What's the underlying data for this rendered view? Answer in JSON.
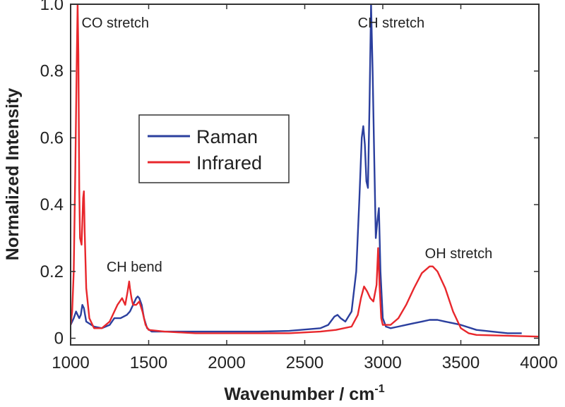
{
  "chart_data": {
    "type": "line",
    "xlabel": "Wavenumber / cm",
    "xlabel_sup": "-1",
    "ylabel": "Normalized Intensity",
    "xlim": [
      1000,
      4000
    ],
    "ylim": [
      -0.02,
      1.0
    ],
    "x_ticks": [
      1000,
      1500,
      2000,
      2500,
      3000,
      3500,
      4000
    ],
    "x_tick_labels": [
      "1000",
      "1500",
      "2000",
      "2500",
      "3000",
      "3500",
      "4000"
    ],
    "y_ticks": [
      0,
      0.2,
      0.4,
      0.6,
      0.8,
      1.0
    ],
    "y_tick_labels": [
      "0",
      "0.2",
      "0.4",
      "0.6",
      "0.8",
      "1.0"
    ],
    "grid": false,
    "legend_position": "center-left",
    "series": [
      {
        "name": "Raman",
        "color": "#2b3f9e",
        "x": [
          1000,
          1020,
          1035,
          1045,
          1055,
          1065,
          1075,
          1085,
          1100,
          1150,
          1200,
          1250,
          1280,
          1320,
          1360,
          1380,
          1400,
          1420,
          1430,
          1440,
          1455,
          1470,
          1490,
          1520,
          1600,
          1800,
          2000,
          2200,
          2400,
          2600,
          2650,
          2690,
          2710,
          2730,
          2760,
          2800,
          2830,
          2850,
          2865,
          2875,
          2885,
          2895,
          2905,
          2915,
          2925,
          2935,
          2945,
          2955,
          2965,
          2975,
          2985,
          3000,
          3020,
          3050,
          3100,
          3150,
          3200,
          3250,
          3300,
          3350,
          3400,
          3450,
          3500,
          3600,
          3700,
          3800,
          3890
        ],
        "values": [
          0.04,
          0.06,
          0.08,
          0.07,
          0.06,
          0.07,
          0.1,
          0.09,
          0.05,
          0.035,
          0.03,
          0.04,
          0.06,
          0.06,
          0.07,
          0.08,
          0.1,
          0.12,
          0.125,
          0.12,
          0.1,
          0.06,
          0.03,
          0.02,
          0.02,
          0.02,
          0.02,
          0.02,
          0.022,
          0.03,
          0.04,
          0.065,
          0.07,
          0.06,
          0.05,
          0.08,
          0.2,
          0.42,
          0.6,
          0.635,
          0.58,
          0.47,
          0.45,
          0.7,
          1.0,
          0.8,
          0.55,
          0.3,
          0.35,
          0.39,
          0.2,
          0.06,
          0.035,
          0.03,
          0.035,
          0.04,
          0.045,
          0.05,
          0.055,
          0.055,
          0.05,
          0.045,
          0.04,
          0.025,
          0.02,
          0.015,
          0.015
        ]
      },
      {
        "name": "Infrared",
        "color": "#e8272c",
        "x": [
          1000,
          1010,
          1020,
          1030,
          1040,
          1045,
          1050,
          1055,
          1060,
          1070,
          1080,
          1085,
          1090,
          1100,
          1120,
          1150,
          1200,
          1250,
          1280,
          1300,
          1330,
          1350,
          1365,
          1375,
          1380,
          1390,
          1400,
          1420,
          1440,
          1460,
          1480,
          1500,
          1600,
          1800,
          2000,
          2200,
          2400,
          2600,
          2700,
          2800,
          2840,
          2860,
          2880,
          2900,
          2920,
          2940,
          2960,
          2970,
          2980,
          2990,
          3000,
          3050,
          3100,
          3150,
          3200,
          3250,
          3300,
          3320,
          3350,
          3400,
          3450,
          3500,
          3550,
          3600,
          4000
        ],
        "values": [
          0.04,
          0.08,
          0.2,
          0.5,
          0.85,
          1.0,
          0.85,
          0.45,
          0.3,
          0.28,
          0.42,
          0.44,
          0.32,
          0.15,
          0.06,
          0.03,
          0.03,
          0.05,
          0.08,
          0.1,
          0.12,
          0.1,
          0.14,
          0.17,
          0.15,
          0.12,
          0.1,
          0.1,
          0.11,
          0.08,
          0.04,
          0.025,
          0.02,
          0.015,
          0.015,
          0.015,
          0.015,
          0.02,
          0.025,
          0.035,
          0.07,
          0.12,
          0.155,
          0.14,
          0.12,
          0.11,
          0.16,
          0.27,
          0.15,
          0.06,
          0.04,
          0.04,
          0.06,
          0.1,
          0.15,
          0.195,
          0.215,
          0.215,
          0.2,
          0.15,
          0.08,
          0.03,
          0.015,
          0.01,
          0.005
        ]
      }
    ],
    "annotations": [
      {
        "text": "CO stretch",
        "x": 1070,
        "y": 0.93
      },
      {
        "text": "CH bend",
        "x": 1230,
        "y": 0.2
      },
      {
        "text": "CH stretch",
        "x": 2840,
        "y": 0.93
      },
      {
        "text": "OH stretch",
        "x": 3270,
        "y": 0.24
      }
    ]
  }
}
